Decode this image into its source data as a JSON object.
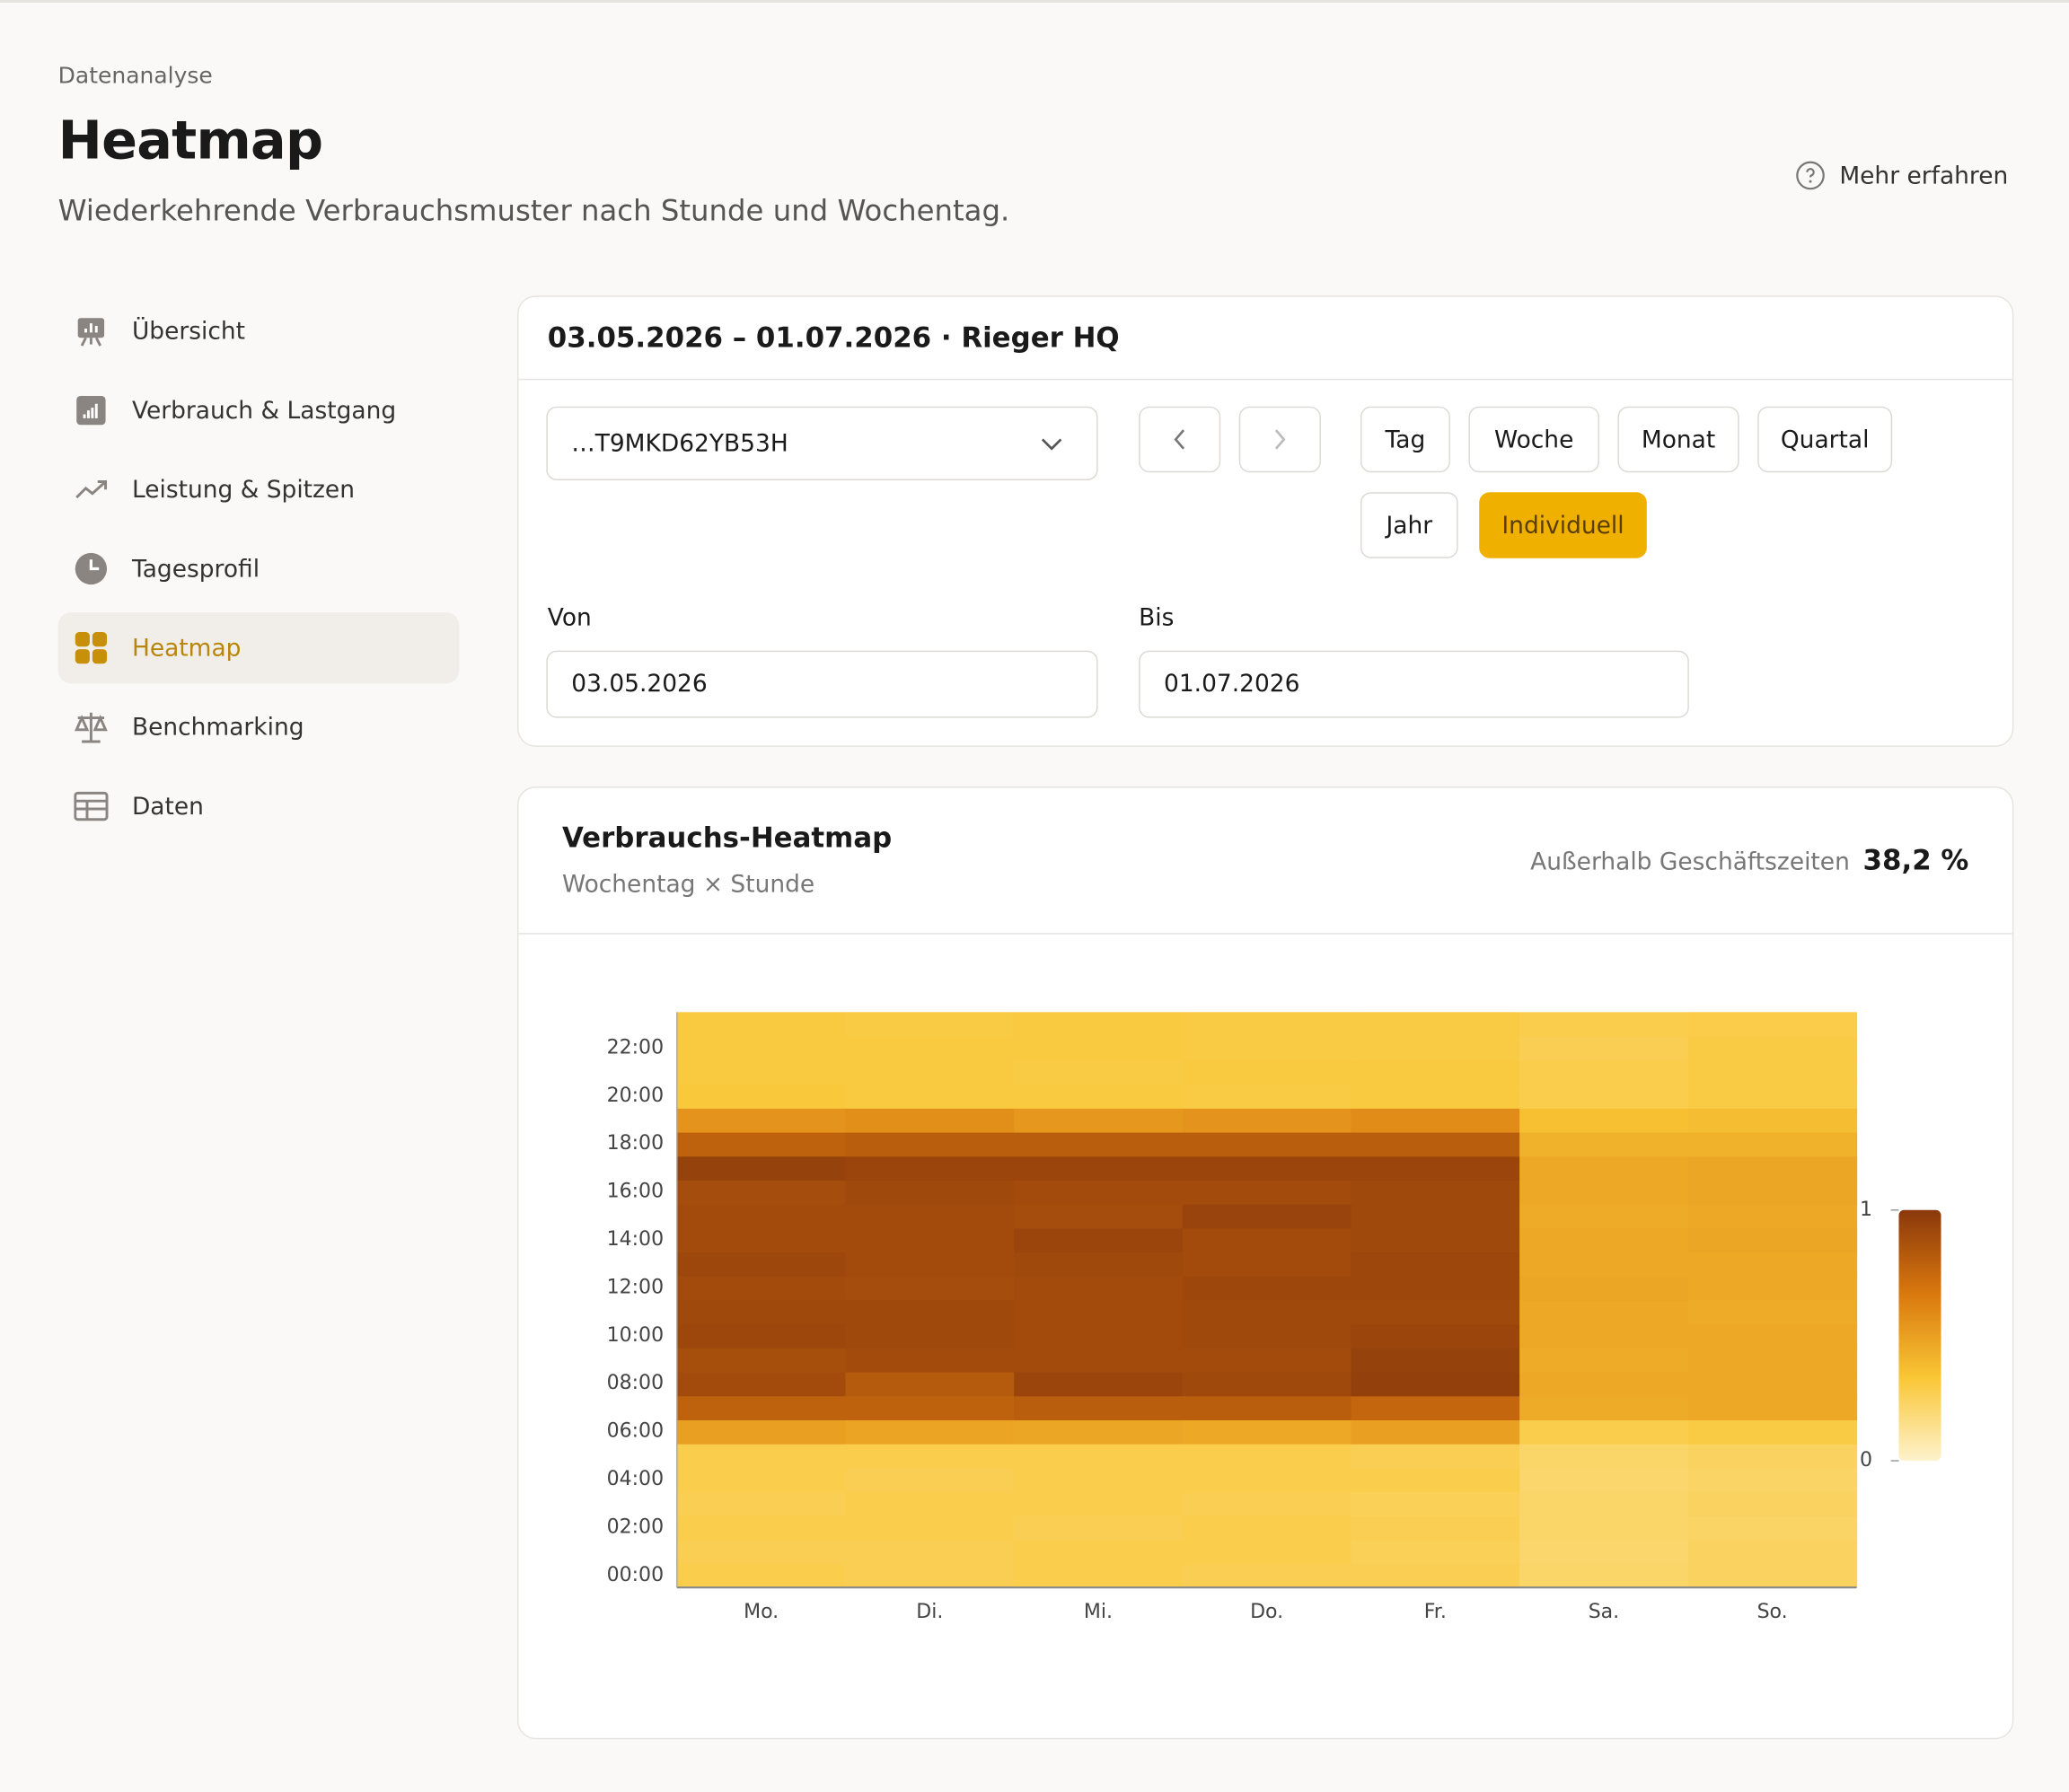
{
  "header": {
    "kicker": "Datenanalyse",
    "title": "Heatmap",
    "subtitle": "Wiederkehrende Verbrauchsmuster nach Stunde und Wochentag.",
    "help": "Mehr erfahren"
  },
  "nav": {
    "items": [
      "Übersicht",
      "Verbrauch & Lastgang",
      "Leistung & Spitzen",
      "Tagesprofil",
      "Heatmap",
      "Benchmarking",
      "Daten"
    ],
    "active": 4
  },
  "filter": {
    "title": "03.05.2026 – 01.07.2026 · Rieger HQ",
    "meter": "…T9MKD62YB53H",
    "periods": [
      "Tag",
      "Woche",
      "Monat",
      "Quartal",
      "Jahr",
      "Individuell"
    ],
    "active_period": 5,
    "from_label": "Von",
    "from_value": "03.05.2026",
    "to_label": "Bis",
    "to_value": "01.07.2026"
  },
  "card": {
    "title": "Verbrauchs-Heatmap",
    "subtitle": "Wochentag × Stunde",
    "stat_label": "Außerhalb Geschäftszeiten",
    "stat_value": "38,2 %"
  },
  "chart_data": {
    "type": "heatmap",
    "categories": [
      "Mo.",
      "Di.",
      "Mi.",
      "Do.",
      "Fr.",
      "Sa.",
      "So."
    ],
    "hours": [
      "00:00",
      null,
      "02:00",
      null,
      "04:00",
      null,
      "06:00",
      null,
      "08:00",
      null,
      "10:00",
      null,
      "12:00",
      null,
      "14:00",
      null,
      "16:00",
      null,
      "18:00",
      null,
      "20:00",
      null,
      "22:00",
      null
    ],
    "values": [
      [
        0.28,
        0.27,
        0.28,
        0.27,
        0.28,
        0.28,
        0.5,
        0.78,
        0.9,
        0.88,
        0.92,
        0.91,
        0.9,
        0.92,
        0.9,
        0.9,
        0.89,
        0.95,
        0.78,
        0.55,
        0.32,
        0.31,
        0.31,
        0.31
      ],
      [
        0.27,
        0.27,
        0.28,
        0.28,
        0.27,
        0.28,
        0.48,
        0.78,
        0.82,
        0.9,
        0.91,
        0.91,
        0.89,
        0.9,
        0.9,
        0.9,
        0.91,
        0.93,
        0.8,
        0.57,
        0.31,
        0.31,
        0.31,
        0.3
      ],
      [
        0.28,
        0.28,
        0.27,
        0.28,
        0.28,
        0.28,
        0.47,
        0.8,
        0.93,
        0.9,
        0.9,
        0.9,
        0.9,
        0.91,
        0.93,
        0.89,
        0.9,
        0.93,
        0.8,
        0.53,
        0.31,
        0.3,
        0.31,
        0.31
      ],
      [
        0.27,
        0.28,
        0.28,
        0.27,
        0.28,
        0.28,
        0.46,
        0.8,
        0.91,
        0.9,
        0.91,
        0.91,
        0.92,
        0.9,
        0.9,
        0.94,
        0.9,
        0.93,
        0.8,
        0.55,
        0.3,
        0.31,
        0.3,
        0.3
      ],
      [
        0.27,
        0.26,
        0.27,
        0.26,
        0.28,
        0.27,
        0.5,
        0.76,
        0.96,
        0.95,
        0.93,
        0.91,
        0.92,
        0.92,
        0.91,
        0.91,
        0.91,
        0.93,
        0.8,
        0.58,
        0.31,
        0.31,
        0.3,
        0.3
      ],
      [
        0.22,
        0.21,
        0.22,
        0.22,
        0.21,
        0.22,
        0.28,
        0.45,
        0.46,
        0.45,
        0.46,
        0.46,
        0.47,
        0.46,
        0.46,
        0.45,
        0.46,
        0.46,
        0.42,
        0.36,
        0.28,
        0.28,
        0.27,
        0.28
      ],
      [
        0.24,
        0.24,
        0.23,
        0.24,
        0.23,
        0.24,
        0.3,
        0.46,
        0.46,
        0.46,
        0.46,
        0.45,
        0.46,
        0.46,
        0.47,
        0.46,
        0.47,
        0.47,
        0.42,
        0.37,
        0.3,
        0.3,
        0.3,
        0.29
      ]
    ],
    "colorscale": [
      "#fdf2cc",
      "#f9c635",
      "#d9780e",
      "#8a380c"
    ],
    "zlim": [
      0,
      1
    ],
    "zticks": [
      0,
      1
    ]
  }
}
